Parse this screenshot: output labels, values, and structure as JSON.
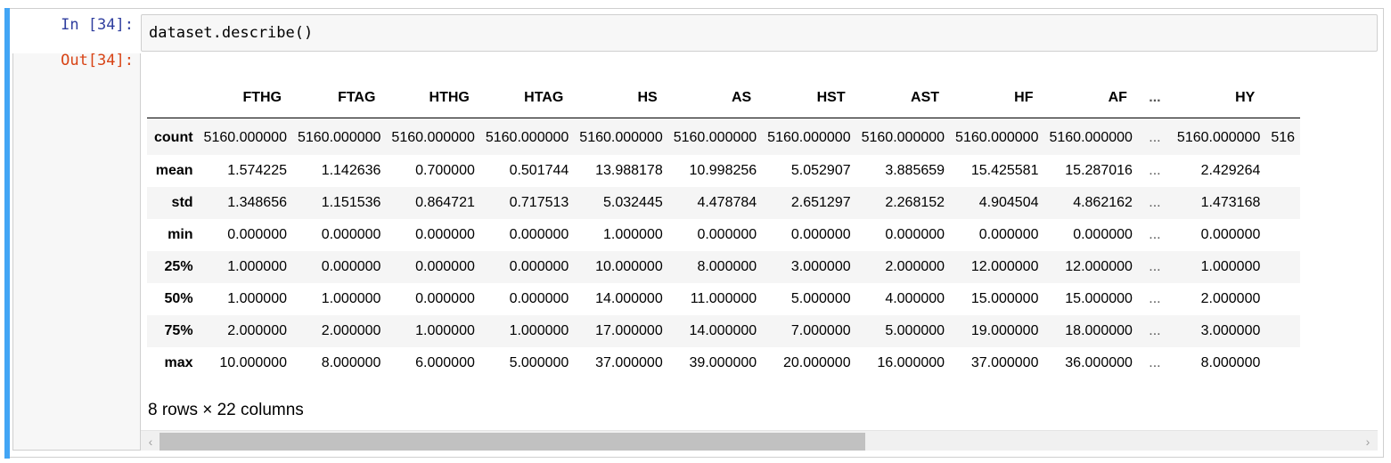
{
  "cell": {
    "in_prompt": "In [34]:",
    "code": "dataset.describe()",
    "out_prompt": "Out[34]:"
  },
  "dataframe": {
    "columns": [
      "FTHG",
      "FTAG",
      "HTHG",
      "HTAG",
      "HS",
      "AS",
      "HST",
      "AST",
      "HF",
      "AF",
      "...",
      "HY",
      ""
    ],
    "rows": [
      {
        "label": "count",
        "values": [
          "5160.000000",
          "5160.000000",
          "5160.000000",
          "5160.000000",
          "5160.000000",
          "5160.000000",
          "5160.000000",
          "5160.000000",
          "5160.000000",
          "5160.000000",
          "...",
          "5160.000000",
          "516"
        ]
      },
      {
        "label": "mean",
        "values": [
          "1.574225",
          "1.142636",
          "0.700000",
          "0.501744",
          "13.988178",
          "10.998256",
          "5.052907",
          "3.885659",
          "15.425581",
          "15.287016",
          "...",
          "2.429264",
          ""
        ]
      },
      {
        "label": "std",
        "values": [
          "1.348656",
          "1.151536",
          "0.864721",
          "0.717513",
          "5.032445",
          "4.478784",
          "2.651297",
          "2.268152",
          "4.904504",
          "4.862162",
          "...",
          "1.473168",
          ""
        ]
      },
      {
        "label": "min",
        "values": [
          "0.000000",
          "0.000000",
          "0.000000",
          "0.000000",
          "1.000000",
          "0.000000",
          "0.000000",
          "0.000000",
          "0.000000",
          "0.000000",
          "...",
          "0.000000",
          ""
        ]
      },
      {
        "label": "25%",
        "values": [
          "1.000000",
          "0.000000",
          "0.000000",
          "0.000000",
          "10.000000",
          "8.000000",
          "3.000000",
          "2.000000",
          "12.000000",
          "12.000000",
          "...",
          "1.000000",
          ""
        ]
      },
      {
        "label": "50%",
        "values": [
          "1.000000",
          "1.000000",
          "0.000000",
          "0.000000",
          "14.000000",
          "11.000000",
          "5.000000",
          "4.000000",
          "15.000000",
          "15.000000",
          "...",
          "2.000000",
          ""
        ]
      },
      {
        "label": "75%",
        "values": [
          "2.000000",
          "2.000000",
          "1.000000",
          "1.000000",
          "17.000000",
          "14.000000",
          "7.000000",
          "5.000000",
          "19.000000",
          "18.000000",
          "...",
          "3.000000",
          ""
        ]
      },
      {
        "label": "max",
        "values": [
          "10.000000",
          "8.000000",
          "6.000000",
          "5.000000",
          "37.000000",
          "39.000000",
          "20.000000",
          "16.000000",
          "37.000000",
          "36.000000",
          "...",
          "8.000000",
          ""
        ]
      }
    ],
    "shape_note": "8 rows × 22 columns"
  },
  "scrollbar": {
    "left_arrow": "‹",
    "right_arrow": "›"
  },
  "colors": {
    "cell_accent": "#42a5f5",
    "in_prompt": "#303f9f",
    "out_prompt": "#d84315"
  }
}
